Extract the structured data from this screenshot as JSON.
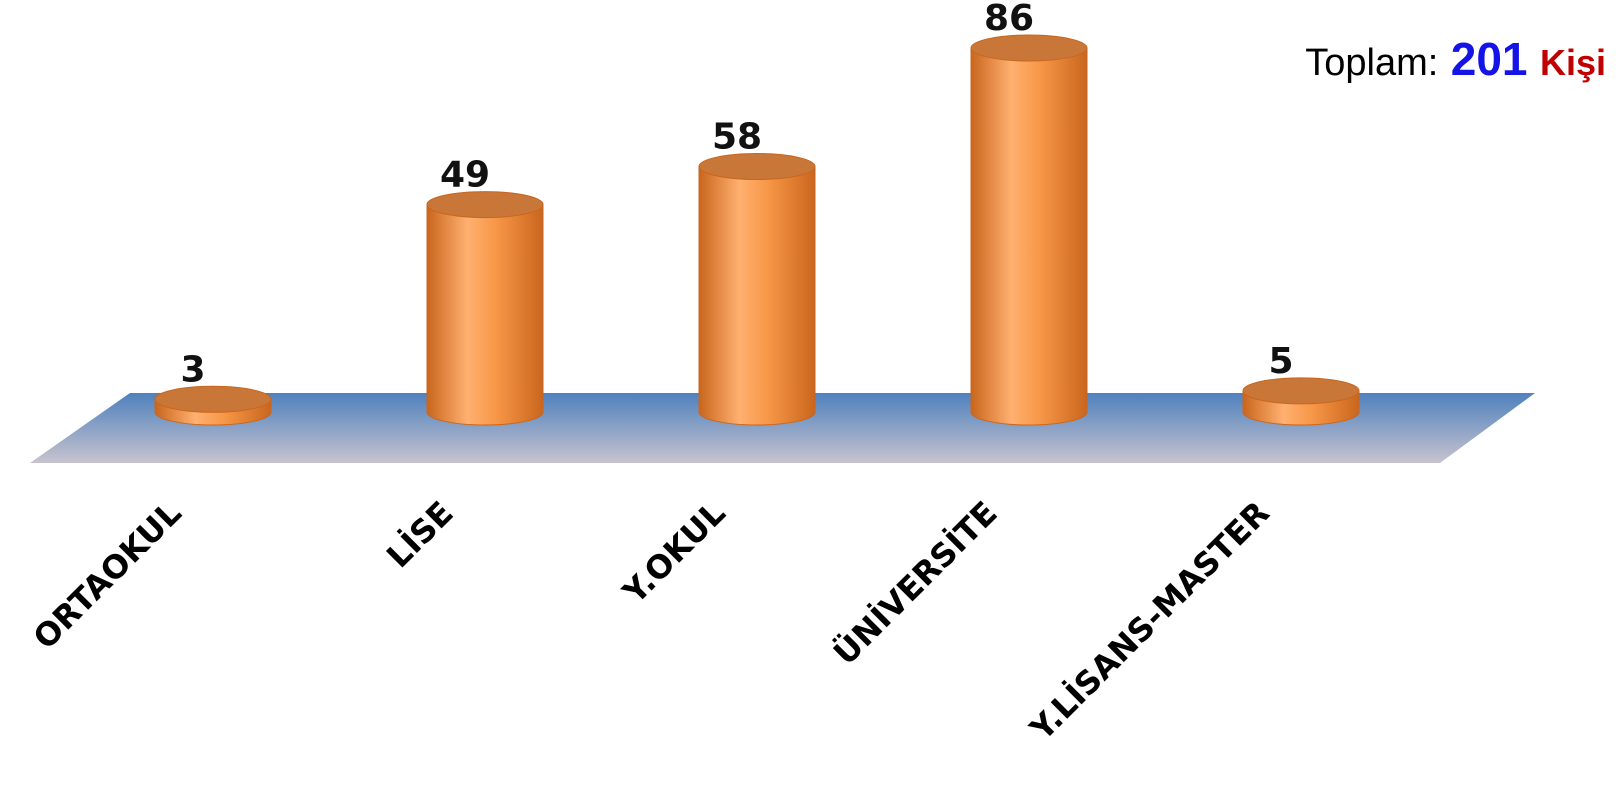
{
  "summary": {
    "label": "Toplam:",
    "value": "201",
    "unit": "Kişi"
  },
  "chart_data": {
    "type": "bar",
    "style": "3d-cylinder",
    "categories": [
      "ORTAOKUL",
      "LİSE",
      "Y.OKUL",
      "ÜNİVERSİTE",
      "Y.LİSANS-MASTER"
    ],
    "values": [
      3,
      49,
      58,
      86,
      5
    ],
    "ylim": [
      0,
      86
    ],
    "grid": false,
    "axes_visible": false,
    "data_labels": true,
    "colors": {
      "bar": "#f79646",
      "bar_light": "#ffb070",
      "bar_dark": "#c9661e",
      "bar_top": "#c87738",
      "floor_top": "#4f81bd",
      "floor_bottom": "#c7c3cf",
      "total_value": "#1414e6",
      "total_unit": "#c00000"
    }
  }
}
